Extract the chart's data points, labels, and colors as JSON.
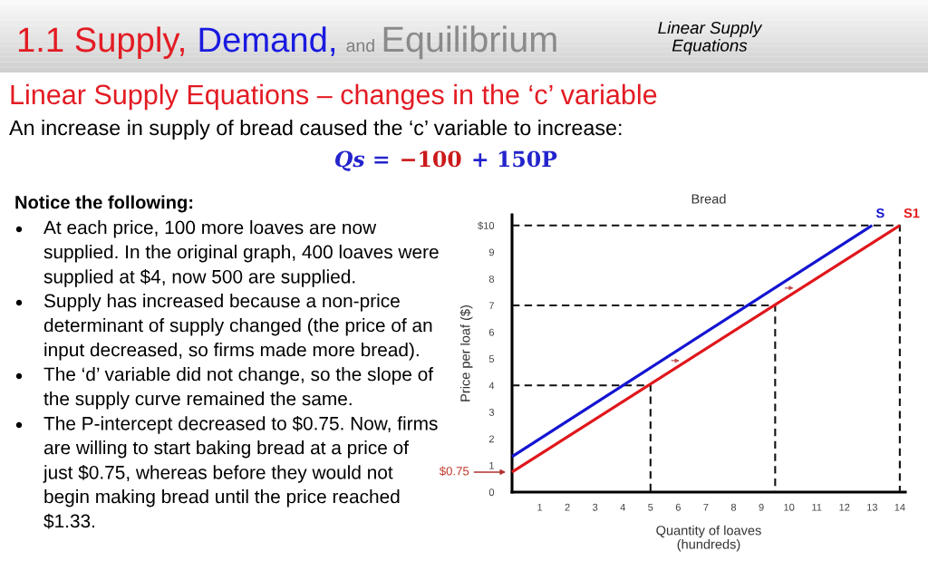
{
  "chart_data": {
    "type": "line",
    "title": "Bread",
    "xlabel": "Quantity of loaves\n(hundreds)",
    "ylabel": "Price per loaf ($)",
    "xlim": [
      0,
      14.2
    ],
    "ylim": [
      0,
      10.4
    ],
    "xticks": [
      1,
      2,
      3,
      4,
      5,
      6,
      7,
      8,
      9,
      10,
      11,
      12,
      13,
      14
    ],
    "yticks": [
      0,
      1,
      2,
      3,
      4,
      5,
      6,
      7,
      8,
      9,
      {
        "value": 10,
        "label": "$10"
      }
    ],
    "series": [
      {
        "name": "S",
        "color": "#1414d2",
        "x": [
          0,
          13
        ],
        "values": [
          1.33,
          10
        ]
      },
      {
        "name": "S1",
        "color": "#e0161b",
        "x": [
          0,
          14
        ],
        "values": [
          0.75,
          10
        ]
      },
      {
        "color": "#111111",
        "line_style": "dashed",
        "x": [
          0,
          14,
          14
        ],
        "values": [
          10,
          10,
          0
        ]
      },
      {
        "color": "#111111",
        "line_style": "dashed",
        "x": [
          0,
          9.5,
          9.5
        ],
        "values": [
          7,
          7,
          0
        ]
      },
      {
        "color": "#111111",
        "line_style": "dashed",
        "x": [
          0,
          5,
          5
        ],
        "values": [
          4,
          4,
          0
        ]
      }
    ],
    "annotations": [
      "1.1 Supply,",
      "Demand,",
      "and",
      "Equilibrium",
      "Linear Supply\nEquations",
      "Linear Supply Equations – changes in the ‘c’ variable",
      "An increase in supply of bread caused the ‘c’ variable to increase:",
      "Qs =",
      "−100",
      "+ 150P",
      "Notice the following:",
      "At each price, 100 more loaves are now\nsupplied. In the original graph, 400 loaves were\nsupplied at $4, now 500 are supplied.",
      "Supply has increased because a non-price\ndeterminant of supply changed (the price of an\ninput decreased, so firms made more bread).",
      "The ‘d’ variable did not change, so the slope of\nthe supply curve remained the same.",
      "The P-intercept decreased to $0.75. Now, firms\nare willing to start baking bread at a price of\njust $0.75, whereas before they would not\nbegin making bread until the price reached\n$1.33.",
      {
        "text": "$0.75",
        "x": 0,
        "y": 0.75
      }
    ]
  }
}
